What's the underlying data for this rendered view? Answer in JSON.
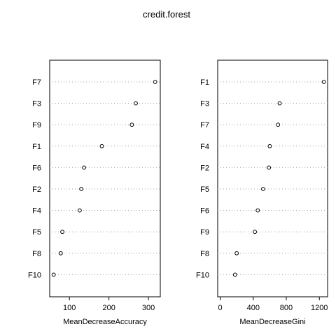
{
  "title": "credit.forest",
  "chart_data": [
    {
      "type": "scatter",
      "title": "",
      "xlabel": "MeanDecreaseAccuracy",
      "ylabel": "",
      "xlim": [
        50,
        330
      ],
      "xticks": [
        100,
        200,
        300
      ],
      "grid": "horizontal-dotted",
      "categories": [
        "F7",
        "F3",
        "F9",
        "F1",
        "F6",
        "F2",
        "F4",
        "F5",
        "F8",
        "F10"
      ],
      "values": [
        317,
        268,
        258,
        182,
        137,
        130,
        126,
        82,
        78,
        60
      ]
    },
    {
      "type": "scatter",
      "title": "",
      "xlabel": "MeanDecreaseGini",
      "ylabel": "",
      "xlim": [
        -30,
        1300
      ],
      "xticks": [
        0,
        400,
        800,
        1200
      ],
      "grid": "horizontal-dotted",
      "categories": [
        "F1",
        "F3",
        "F7",
        "F4",
        "F2",
        "F5",
        "F6",
        "F9",
        "F8",
        "F10"
      ],
      "values": [
        1255,
        720,
        700,
        600,
        590,
        520,
        455,
        420,
        200,
        180
      ]
    }
  ]
}
